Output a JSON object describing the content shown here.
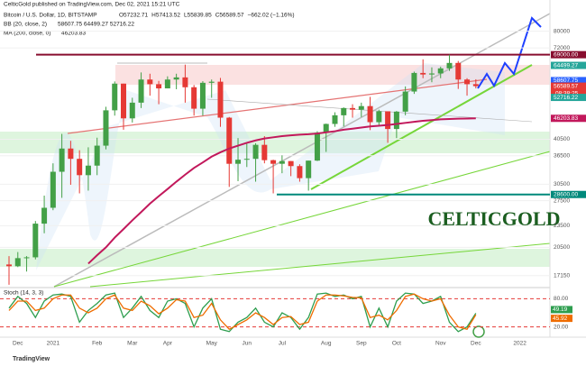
{
  "chart_data": {
    "type": "candlestick",
    "header": "CelticGold published on TradingView.com, Dec 02, 2021 15:21 UTC",
    "symbol": "Bitcoin / U.S. Dollar, 1D, BITSTAMP",
    "ohlc_legend": [
      "O57232.71",
      "H57413.52",
      "L55839.85",
      "C56589.57",
      "−662.02 (−1.16%)"
    ],
    "bb_legend": "BB (20, close, 2)",
    "bb_values": "58607.75  64499.27  52716.22",
    "ma_legend": "MA (200, close, 0)",
    "ma_value": "46203.83",
    "stoch_legend": "Stoch (14, 3, 3)",
    "logo": "CELTICGOLD",
    "watermark": "TradingView",
    "countdown": "08:38:25",
    "categories": [
      null,
      "Dec",
      null,
      null,
      null,
      "2021",
      null,
      null,
      null,
      null,
      "Feb",
      null,
      null,
      null,
      "Mar",
      null,
      null,
      null,
      "Apr",
      null,
      null,
      null,
      null,
      "May",
      null,
      null,
      null,
      "Jun",
      null,
      null,
      null,
      "Jul",
      null,
      null,
      null,
      null,
      "Aug",
      null,
      null,
      null,
      "Sep",
      null,
      null,
      null,
      "Oct",
      null,
      null,
      null,
      null,
      "Nov",
      null,
      null,
      null,
      "Dec",
      null,
      null,
      null,
      null,
      "2022"
    ],
    "open": [
      18400,
      18200,
      19150,
      19250,
      23800,
      26300,
      33000,
      38200,
      35800,
      32300,
      34300,
      38900,
      48600,
      57500,
      46200,
      51000,
      59000,
      57300,
      55800,
      59000,
      59800,
      56200,
      49100,
      57800,
      58200,
      46400,
      34700,
      35600,
      35800,
      39100,
      35500,
      34700,
      35300,
      34200,
      31700,
      35400,
      42200,
      44600,
      47100,
      49300,
      48800,
      49900,
      45100,
      48300,
      43200,
      48200,
      54700,
      61500,
      60900,
      61300,
      63300,
      65500,
      59000,
      57300,
      null,
      null,
      null,
      null,
      null
    ],
    "high": [
      19400,
      19900,
      19400,
      24200,
      28400,
      34800,
      41900,
      40100,
      37800,
      38500,
      40900,
      49700,
      58300,
      57500,
      52600,
      61700,
      61200,
      58500,
      60200,
      61200,
      64800,
      57000,
      58400,
      59000,
      59600,
      46600,
      40800,
      39400,
      39500,
      41300,
      35600,
      36600,
      35300,
      34600,
      35400,
      42600,
      44700,
      48000,
      49500,
      50500,
      51000,
      52900,
      48800,
      48300,
      48400,
      56500,
      62000,
      67000,
      63700,
      64000,
      69000,
      66300,
      59500,
      59100,
      null,
      null,
      null,
      null,
      null
    ],
    "low": [
      16200,
      18100,
      17600,
      19000,
      22400,
      25900,
      28000,
      30400,
      28800,
      29300,
      32300,
      38000,
      47000,
      43000,
      45000,
      49300,
      53300,
      50500,
      55800,
      55500,
      51000,
      47000,
      47000,
      52600,
      43800,
      30000,
      31100,
      34000,
      31000,
      34800,
      28800,
      32700,
      32100,
      31000,
      29300,
      35300,
      37400,
      43800,
      43900,
      46400,
      46600,
      42900,
      44200,
      39600,
      40800,
      47100,
      53900,
      59500,
      58000,
      59500,
      62300,
      55600,
      53300,
      55800,
      null,
      null,
      null,
      null,
      null
    ],
    "close": [
      18200,
      19150,
      19250,
      23800,
      26300,
      33000,
      38200,
      35800,
      32300,
      34300,
      38900,
      48600,
      57500,
      46200,
      51000,
      59000,
      57300,
      55800,
      59000,
      59800,
      56200,
      49100,
      57800,
      58200,
      46400,
      34700,
      35600,
      35800,
      39100,
      35500,
      34700,
      35300,
      34200,
      31700,
      35400,
      42200,
      44600,
      47100,
      49300,
      48800,
      49900,
      45100,
      48300,
      43200,
      48200,
      54700,
      61500,
      60900,
      61300,
      63300,
      65500,
      59000,
      57300,
      56590,
      null,
      null,
      null,
      null,
      null
    ],
    "up_color": "#43a047",
    "down_color": "#e53935",
    "ma200": {
      "color": "#c2185b",
      "values": [
        null,
        null,
        null,
        null,
        null,
        null,
        null,
        null,
        null,
        18500,
        19500,
        20500,
        21800,
        23000,
        24300,
        25600,
        27000,
        28300,
        29600,
        31000,
        32400,
        33800,
        35000,
        36300,
        37300,
        38200,
        38900,
        39600,
        40200,
        40700,
        41000,
        41300,
        41500,
        41700,
        41800,
        42000,
        42300,
        42600,
        43000,
        43300,
        43600,
        43900,
        44100,
        44300,
        44600,
        44900,
        45200,
        45500,
        45700,
        45900,
        46000,
        46100,
        46150,
        46203.83,
        null,
        null,
        null,
        null,
        null
      ]
    },
    "log_scale": true,
    "ylim": [
      16000,
      92000
    ],
    "yticks": [
      17150,
      20500,
      23500,
      27500,
      30500,
      36500,
      40500,
      72000,
      80000
    ],
    "price_labels": [
      {
        "value": 69000,
        "label": "69000.00",
        "color": "#880e2f"
      },
      {
        "value": 64499.27,
        "label": "64499.27",
        "color": "#26a69a"
      },
      {
        "value": 58607.75,
        "label": "58607.75",
        "color": "#2962ff"
      },
      {
        "value": 56589.57,
        "label": "56589.57",
        "color": "#e53935"
      },
      {
        "value": 52716.22,
        "label": "52716.22",
        "color": "#26a69a"
      },
      {
        "value": 46203.83,
        "label": "46203.83",
        "color": "#c2185b"
      },
      {
        "value": 28600,
        "label": "28600.00",
        "color": "#00897b"
      }
    ],
    "stoch": {
      "ylim": [
        0,
        100
      ],
      "yticks": [
        {
          "value": 20,
          "label": "20.00"
        },
        {
          "value": 80,
          "label": "80.00"
        }
      ],
      "series": [
        {
          "name": "%K",
          "color": "#2e9e4f",
          "values": [
            60,
            85,
            70,
            40,
            75,
            88,
            90,
            85,
            30,
            55,
            70,
            88,
            92,
            40,
            60,
            85,
            55,
            40,
            75,
            80,
            70,
            20,
            60,
            80,
            15,
            10,
            30,
            40,
            60,
            30,
            20,
            50,
            40,
            15,
            40,
            90,
            92,
            85,
            88,
            80,
            85,
            20,
            60,
            20,
            75,
            92,
            90,
            70,
            75,
            85,
            30,
            10,
            20,
            49.19,
            null,
            null,
            null,
            null,
            null
          ],
          "value_label": "49.19"
        },
        {
          "name": "%D",
          "color": "#ef6c00",
          "values": [
            55,
            75,
            75,
            55,
            60,
            80,
            88,
            88,
            60,
            50,
            60,
            80,
            88,
            60,
            55,
            75,
            65,
            48,
            60,
            78,
            75,
            40,
            45,
            70,
            35,
            15,
            25,
            35,
            50,
            40,
            25,
            40,
            42,
            25,
            30,
            75,
            88,
            88,
            86,
            83,
            82,
            40,
            45,
            35,
            55,
            85,
            90,
            80,
            75,
            80,
            45,
            20,
            15,
            45.92,
            null,
            null,
            null,
            null,
            null
          ],
          "value_label": "45.92"
        }
      ]
    }
  }
}
